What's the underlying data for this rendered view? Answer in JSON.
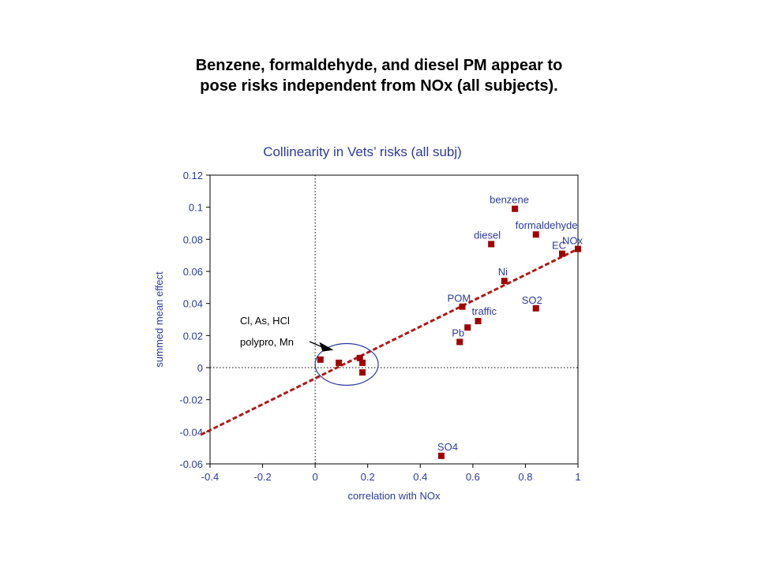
{
  "slide": {
    "title_line1": "Benzene, formaldehyde, and diesel PM appear to",
    "title_line2": "pose risks independent from NOx (all subjects)."
  },
  "colors": {
    "label": "#2b3a9e",
    "marker": "#a00000",
    "regression": "#b01818",
    "axis": "#000000"
  },
  "chart_data": {
    "type": "scatter",
    "title": "Collinearity in Vets’ risks (all subj)",
    "xlabel": "correlation with NOx",
    "ylabel": "summed mean effect",
    "xlim": [
      -0.4,
      1
    ],
    "ylim": [
      -0.06,
      0.12
    ],
    "xticks": [
      "-0.4",
      "-0.2",
      "0",
      "0.2",
      "0.4",
      "0.6",
      "0.8",
      "1"
    ],
    "yticks": [
      "0.12",
      "0.1",
      "0.08",
      "0.06",
      "0.04",
      "0.02",
      "0",
      "-0.02",
      "-0.04",
      "-0.06"
    ],
    "grid": false,
    "reference_lines": {
      "x": 0,
      "y": 0,
      "style": "dotted"
    },
    "regression_line": {
      "style": "dashed",
      "points": [
        [
          -0.4,
          -0.039
        ],
        [
          1,
          0.074
        ]
      ]
    },
    "points": [
      {
        "label": "benzene",
        "x": 0.76,
        "y": 0.099
      },
      {
        "label": "formaldehyde",
        "x": 0.84,
        "y": 0.083
      },
      {
        "label": "diesel",
        "x": 0.67,
        "y": 0.077
      },
      {
        "label": "NOx",
        "x": 1.0,
        "y": 0.074
      },
      {
        "label": "EC",
        "x": 0.94,
        "y": 0.071
      },
      {
        "label": "Ni",
        "x": 0.72,
        "y": 0.054
      },
      {
        "label": "POM",
        "x": 0.56,
        "y": 0.038
      },
      {
        "label": "SO2",
        "x": 0.84,
        "y": 0.037
      },
      {
        "label": "traffic",
        "x": 0.62,
        "y": 0.029
      },
      {
        "label": "",
        "x": 0.58,
        "y": 0.025
      },
      {
        "label": "Pb",
        "x": 0.55,
        "y": 0.016
      },
      {
        "label": "",
        "x": 0.02,
        "y": 0.005
      },
      {
        "label": "",
        "x": 0.09,
        "y": 0.003
      },
      {
        "label": "",
        "x": 0.17,
        "y": 0.006
      },
      {
        "label": "",
        "x": 0.18,
        "y": 0.003
      },
      {
        "label": "",
        "x": 0.18,
        "y": -0.003
      },
      {
        "label": "SO4",
        "x": 0.48,
        "y": -0.055
      }
    ],
    "annotation": {
      "lines": [
        "Cl, As, HCl",
        "polypro, Mn"
      ],
      "arrow_target": [
        0.07,
        0.011
      ],
      "ellipse": {
        "cx": 0.12,
        "cy": 0.002,
        "rx": 0.12,
        "ry": 0.013
      }
    }
  }
}
